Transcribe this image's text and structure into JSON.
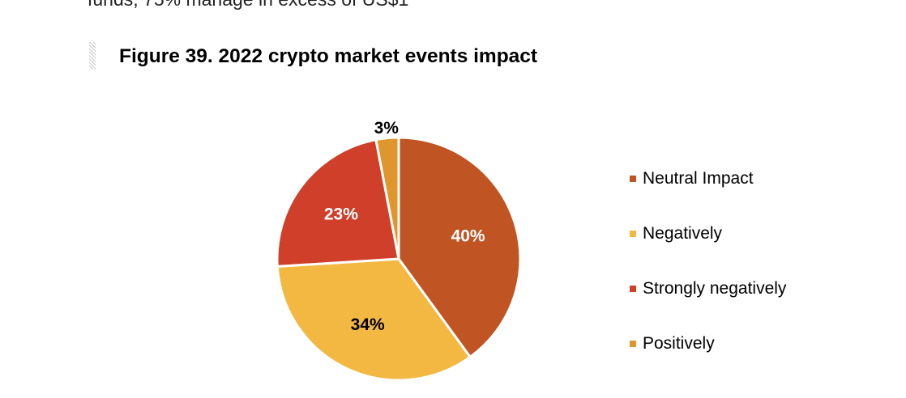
{
  "page": {
    "body_text": "funds, 75% manage in excess of US$1"
  },
  "figure": {
    "title": "Figure 39. 2022 crypto market events impact"
  },
  "chart_data": {
    "type": "pie",
    "title": "Figure 39. 2022 crypto market events impact",
    "slices": [
      {
        "label": "Neutral Impact",
        "value": 40,
        "data_label": "40%",
        "color": "#C05423",
        "label_color": "#ffffff"
      },
      {
        "label": "Negatively",
        "value": 34,
        "data_label": "34%",
        "color": "#F3B842",
        "label_color": "#000000"
      },
      {
        "label": "Strongly negatively",
        "value": 23,
        "data_label": "23%",
        "color": "#CF3F2A",
        "label_color": "#ffffff"
      },
      {
        "label": "Positively",
        "value": 3,
        "data_label": "3%",
        "color": "#E0962E",
        "label_color": "#000000"
      }
    ],
    "start_angle": "12 o'clock",
    "direction": "clockwise",
    "legend_position": "right"
  }
}
